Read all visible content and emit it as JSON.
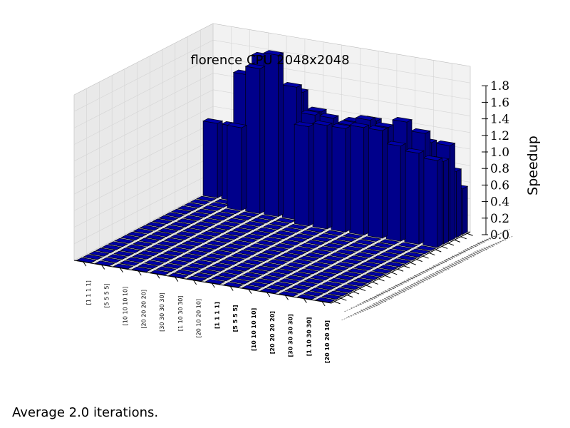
{
  "chart_data": {
    "type": "bar3d",
    "title": "florence CPU 2048x2048",
    "zlabel": "Speedup",
    "zlim": [
      0.0,
      1.8
    ],
    "zticks": [
      "0.0",
      "0.2",
      "0.4",
      "0.6",
      "0.8",
      "1.0",
      "1.2",
      "1.4",
      "1.6",
      "1.8"
    ],
    "grid": true,
    "bar_color": "#00008b",
    "pane_color": "#ebebeb",
    "x_categories": [
      "[1 1 1 1]",
      "[5 5 5 5]",
      "[10 10 10 10]",
      "[20 20 20 20]",
      "[30 30 30 30]",
      "[1 10 30 30]",
      "[20 10 20 10]",
      "[1 1 1 1]",
      "[5 5 5 5]",
      "[10 10 10 10]",
      "[20 20 20 20]",
      "[30 30 30 30]",
      "[1 10 30 30]",
      "[20 10 20 10]"
    ],
    "x_bold": [
      false,
      false,
      false,
      false,
      false,
      false,
      false,
      true,
      true,
      true,
      true,
      true,
      true,
      true
    ],
    "y_categories_count": 22,
    "rows": [
      [
        0.0,
        0.0,
        0.0,
        0.0,
        0.0,
        0.0,
        0.0,
        0.0,
        0.0,
        0.0,
        0.0,
        0.0,
        0.0,
        0.0
      ],
      [
        0.0,
        0.0,
        0.0,
        0.0,
        0.0,
        0.0,
        0.0,
        0.0,
        0.0,
        0.0,
        0.0,
        0.0,
        0.0,
        0.0
      ],
      [
        0.0,
        0.0,
        0.0,
        0.0,
        0.0,
        0.0,
        0.0,
        0.0,
        0.0,
        0.0,
        0.0,
        0.0,
        0.0,
        0.0
      ],
      [
        0.0,
        0.0,
        0.0,
        0.0,
        0.0,
        0.0,
        0.0,
        0.0,
        0.0,
        0.0,
        0.0,
        0.0,
        0.0,
        0.0
      ],
      [
        0.0,
        0.0,
        0.0,
        0.0,
        0.0,
        0.0,
        0.0,
        0.0,
        0.0,
        0.0,
        0.0,
        0.0,
        0.0,
        0.0
      ],
      [
        0.0,
        0.0,
        0.0,
        0.0,
        0.0,
        0.0,
        0.0,
        0.0,
        0.0,
        0.0,
        0.0,
        0.0,
        0.0,
        0.0
      ],
      [
        0.0,
        0.0,
        0.0,
        0.0,
        0.0,
        0.0,
        0.0,
        0.0,
        0.0,
        0.0,
        0.0,
        0.0,
        0.0,
        0.0
      ],
      [
        0.0,
        0.0,
        0.0,
        0.0,
        0.0,
        0.0,
        0.0,
        0.0,
        0.0,
        0.0,
        0.0,
        0.0,
        0.0,
        0.0
      ],
      [
        0.0,
        0.0,
        0.0,
        0.0,
        0.0,
        0.0,
        0.0,
        0.0,
        0.0,
        0.0,
        0.0,
        0.0,
        0.0,
        0.0
      ],
      [
        0.0,
        0.0,
        0.0,
        0.0,
        0.0,
        0.0,
        0.0,
        0.0,
        0.0,
        0.0,
        0.0,
        0.0,
        0.0,
        0.0
      ],
      [
        0.0,
        0.0,
        0.0,
        0.0,
        0.0,
        0.0,
        0.0,
        0.0,
        0.0,
        0.0,
        0.0,
        0.0,
        0.0,
        0.0
      ],
      [
        0.0,
        0.0,
        0.0,
        0.0,
        0.0,
        0.0,
        0.0,
        0.0,
        0.0,
        0.0,
        0.0,
        0.0,
        0.0,
        0.0
      ],
      [
        0.0,
        0.0,
        0.0,
        0.0,
        0.0,
        0.0,
        0.0,
        0.0,
        0.0,
        0.0,
        0.0,
        0.0,
        0.0,
        0.0
      ],
      [
        0.0,
        0.0,
        0.0,
        0.0,
        0.0,
        0.0,
        0.0,
        0.0,
        0.0,
        0.0,
        0.0,
        0.0,
        0.0,
        0.0
      ],
      [
        0.0,
        0.0,
        0.0,
        0.0,
        0.0,
        0.0,
        0.0,
        0.0,
        0.0,
        0.0,
        0.0,
        0.0,
        0.0,
        0.0
      ],
      [
        0.0,
        0.0,
        0.0,
        0.0,
        0.0,
        0.0,
        0.0,
        0.0,
        0.0,
        0.0,
        0.0,
        0.0,
        0.0,
        0.0
      ],
      [
        0.0,
        0.0,
        0.0,
        0.0,
        0.0,
        0.0,
        0.0,
        0.0,
        0.0,
        0.0,
        0.0,
        0.0,
        0.0,
        0.0
      ],
      [
        0.0,
        0.0,
        0.0,
        0.0,
        0.0,
        0.0,
        1.2,
        1.25,
        1.25,
        1.3,
        1.3,
        1.15,
        1.1,
        1.05
      ],
      [
        0.0,
        0.0,
        1.0,
        1.75,
        1.95,
        1.6,
        1.3,
        1.3,
        1.25,
        1.35,
        1.3,
        1.4,
        1.3,
        1.0
      ],
      [
        0.0,
        0.0,
        1.6,
        1.85,
        1.45,
        1.5,
        1.3,
        1.1,
        1.25,
        1.3,
        1.1,
        1.2,
        1.15,
        1.15
      ],
      [
        0.9,
        0.9,
        0.85,
        0.85,
        0.8,
        0.8,
        0.8,
        0.8,
        0.8,
        0.8,
        0.8,
        0.8,
        0.8,
        0.8
      ],
      [
        0.7,
        0.82,
        0.85,
        0.85,
        0.85,
        0.8,
        0.75,
        0.75,
        0.75,
        0.8,
        0.8,
        0.8,
        0.8,
        0.55
      ]
    ]
  },
  "footer": "Average 2.0 iterations."
}
